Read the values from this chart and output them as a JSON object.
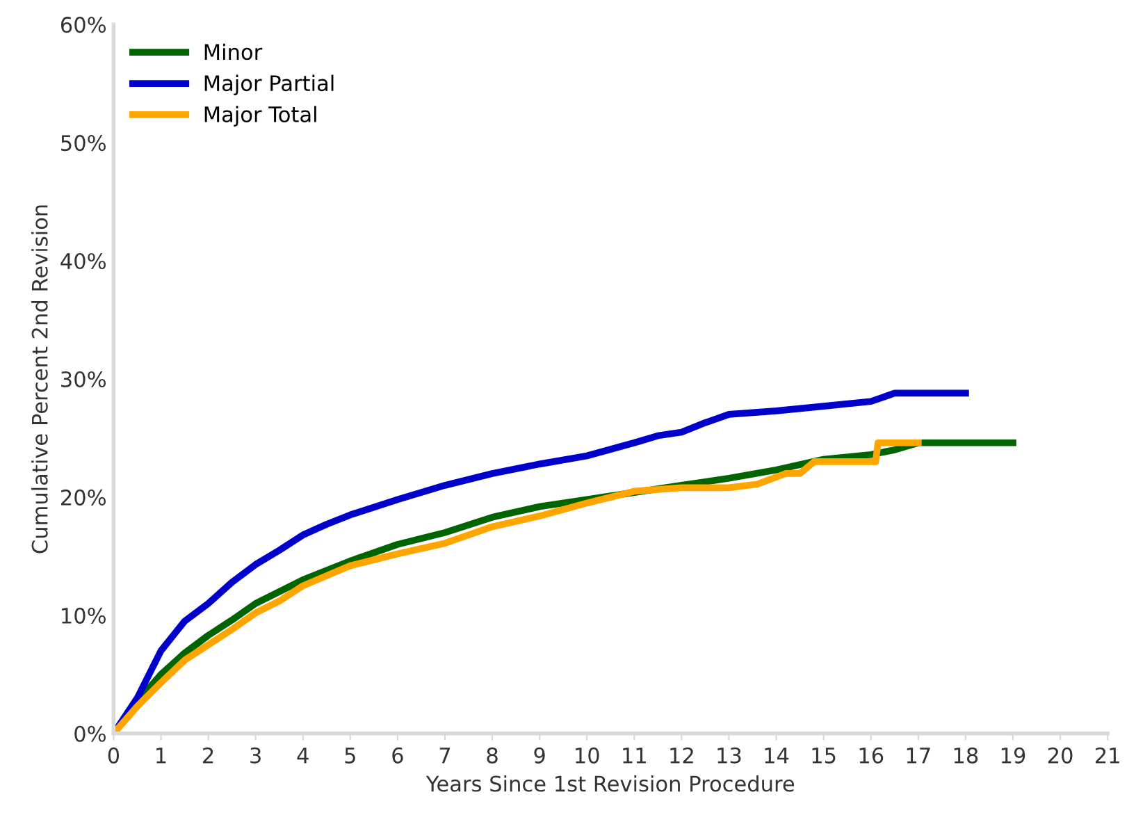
{
  "chart_data": {
    "type": "line",
    "xlabel": "Years Since 1st Revision Procedure",
    "ylabel": "Cumulative Percent 2nd Revision",
    "xlim": [
      0,
      21
    ],
    "xticks": [
      0,
      1,
      2,
      3,
      4,
      5,
      6,
      7,
      8,
      9,
      10,
      11,
      12,
      13,
      14,
      15,
      16,
      17,
      18,
      19,
      20,
      21
    ],
    "ylim": [
      0,
      60
    ],
    "yticks": [
      {
        "value": 0,
        "label": "0%"
      },
      {
        "value": 10,
        "label": "10%"
      },
      {
        "value": 20,
        "label": "20%"
      },
      {
        "value": 30,
        "label": "30%"
      },
      {
        "value": 40,
        "label": "40%"
      },
      {
        "value": 50,
        "label": "50%"
      },
      {
        "value": 60,
        "label": "60%"
      }
    ],
    "grid": false,
    "legend": "top left",
    "line_style": "solid",
    "series": [
      {
        "name": "Minor",
        "color": "#006400",
        "x": [
          0,
          0.5,
          1,
          1.5,
          2,
          2.5,
          3,
          3.5,
          4,
          5,
          6,
          7,
          8,
          9,
          10,
          11,
          12,
          13,
          14,
          15,
          16,
          16.5,
          17,
          19
        ],
        "values": [
          0,
          2.7,
          5,
          6.8,
          8.3,
          9.6,
          11,
          12,
          13,
          14.6,
          16,
          17,
          18.3,
          19.2,
          19.8,
          20.4,
          21,
          21.6,
          22.3,
          23.2,
          23.6,
          24,
          24.6,
          24.6
        ]
      },
      {
        "name": "Major Partial",
        "color": "#0000cd",
        "x": [
          0,
          0.5,
          1,
          1.5,
          2,
          2.5,
          3,
          3.5,
          4,
          4.5,
          5,
          6,
          7,
          8,
          9,
          10,
          11,
          11.5,
          12,
          12.5,
          13,
          14,
          15,
          16,
          16.5,
          18
        ],
        "values": [
          0,
          3,
          7,
          9.5,
          11,
          12.8,
          14.3,
          15.5,
          16.8,
          17.7,
          18.5,
          19.8,
          21,
          22,
          22.8,
          23.5,
          24.6,
          25.2,
          25.5,
          26.3,
          27,
          27.3,
          27.7,
          28.1,
          28.8,
          28.8
        ]
      },
      {
        "name": "Major Total",
        "color": "#ffa500",
        "x": [
          0,
          0.5,
          1,
          1.5,
          2,
          2.5,
          3,
          3.5,
          4,
          5,
          6,
          7,
          8,
          9,
          10,
          11,
          12,
          13,
          13.6,
          14.2,
          14.5,
          14.8,
          16.1,
          16.15,
          17
        ],
        "values": [
          0,
          2.3,
          4.3,
          6.2,
          7.5,
          8.8,
          10.2,
          11.2,
          12.5,
          14.2,
          15.2,
          16.1,
          17.5,
          18.4,
          19.5,
          20.5,
          20.8,
          20.8,
          21.1,
          22,
          22,
          23,
          23,
          24.6,
          24.6
        ]
      }
    ]
  }
}
